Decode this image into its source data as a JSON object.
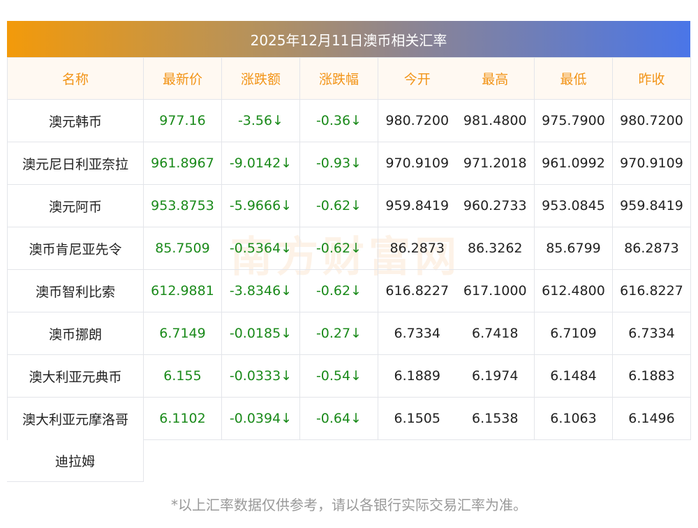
{
  "title": "2025年12月11日澳币相关汇率",
  "headers": [
    "名称",
    "最新价",
    "涨跌额",
    "涨跌幅",
    "今开",
    "最高",
    "最低",
    "昨收"
  ],
  "rows": [
    [
      "澳元韩币",
      "977.16",
      "-3.56↓",
      "-0.36↓",
      "980.7200",
      "981.4800",
      "975.7900",
      "980.7200"
    ],
    [
      "澳元尼日利亚奈拉",
      "961.8967",
      "-9.0142↓",
      "-0.93↓",
      "970.9109",
      "971.2018",
      "961.0992",
      "970.9109"
    ],
    [
      "澳元阿币",
      "953.8753",
      "-5.9666↓",
      "-0.62↓",
      "959.8419",
      "960.2733",
      "953.0845",
      "959.8419"
    ],
    [
      "澳币肯尼亚先令",
      "85.7509",
      "-0.5364↓",
      "-0.62↓",
      "86.2873",
      "86.3262",
      "85.6799",
      "86.2873"
    ],
    [
      "澳币智利比索",
      "612.9881",
      "-3.8346↓",
      "-0.62↓",
      "616.8227",
      "617.1000",
      "612.4800",
      "616.8227"
    ],
    [
      "澳币挪朗",
      "6.7149",
      "-0.0185↓",
      "-0.27↓",
      "6.7334",
      "6.7418",
      "6.7109",
      "6.7334"
    ],
    [
      "澳大利亚元典币",
      "6.155",
      "-0.0333↓",
      "-0.54↓",
      "6.1889",
      "6.1974",
      "6.1484",
      "6.1883"
    ],
    [
      "澳大利亚元摩洛哥",
      "6.1102",
      "-0.0394↓",
      "-0.64↓",
      "6.1505",
      "6.1538",
      "6.1063",
      "6.1496"
    ]
  ],
  "last_name_overflow": "迪拉姆",
  "footer": "*以上汇率数据仅供参考，请以各银行实际交易汇率为准。",
  "watermark": "南方财富网",
  "colors": {
    "header_text": "#f29417",
    "up_down": "#1a8a1a"
  }
}
